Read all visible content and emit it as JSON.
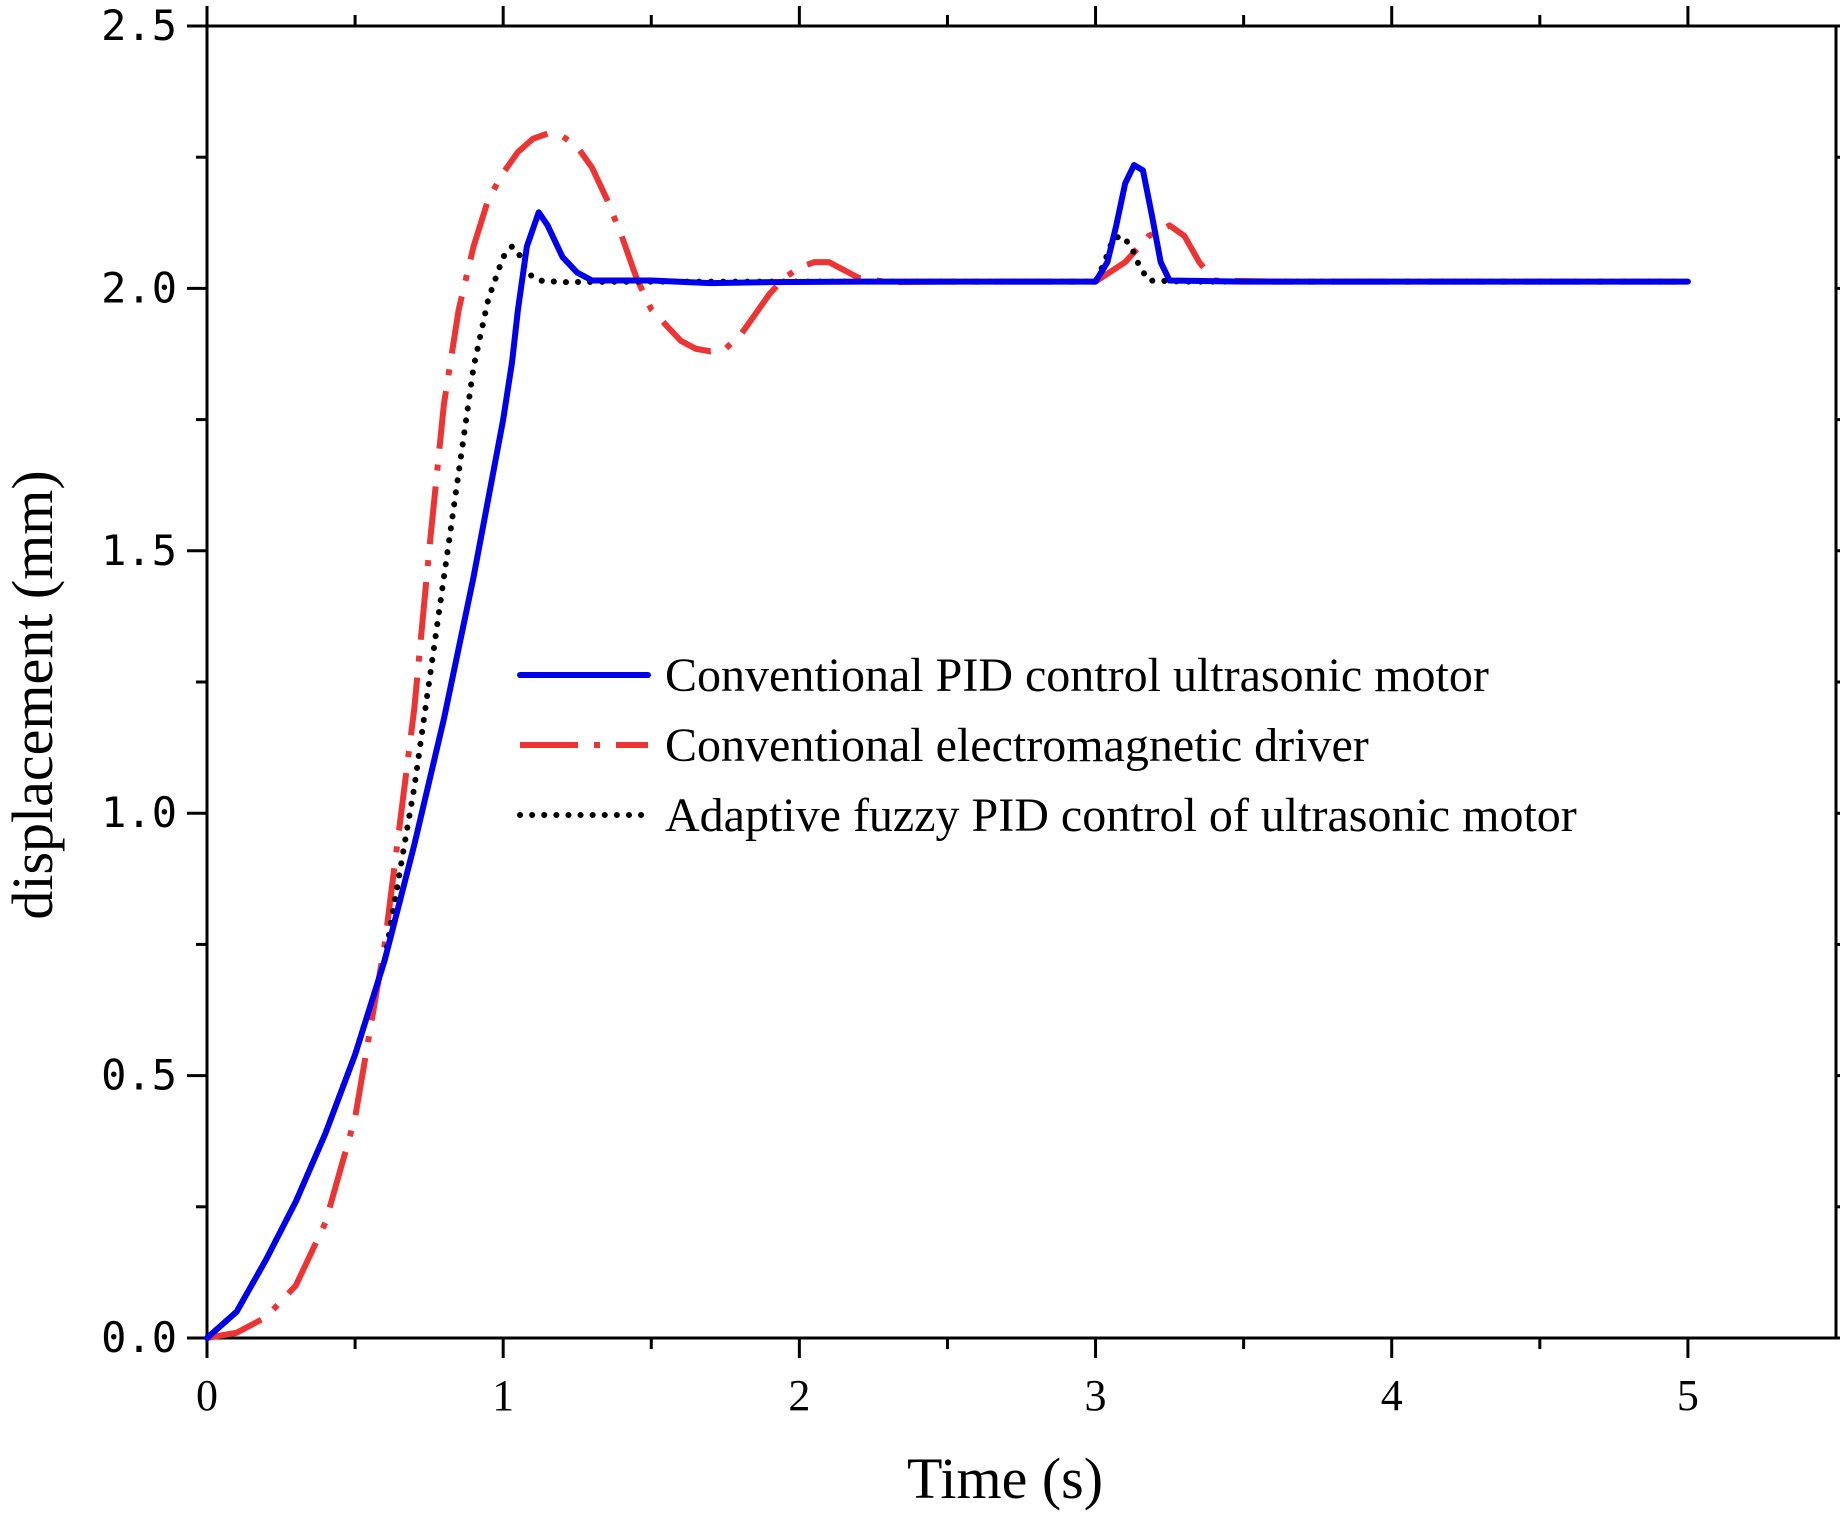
{
  "chart_data": {
    "type": "line",
    "xlabel": "Time (s)",
    "ylabel": "displacement (mm)",
    "xlim": [
      0,
      5.5
    ],
    "ylim": [
      0,
      2.5
    ],
    "x_ticks": [
      0,
      1,
      2,
      3,
      4,
      5
    ],
    "x_tick_labels": [
      "0",
      "1",
      "2",
      "3",
      "4",
      "5"
    ],
    "y_ticks": [
      0,
      0.5,
      1.0,
      1.5,
      2.0,
      2.5
    ],
    "y_tick_labels": [
      "0.0",
      "0.5",
      "1.0",
      "1.5",
      "2.0",
      "2.5"
    ],
    "grid": false,
    "legend_position": "center-right",
    "series": [
      {
        "name": "Conventional PID control ultrasonic motor",
        "color": "#0000ee",
        "style": "solid",
        "points": [
          [
            0,
            0
          ],
          [
            0.1,
            0.05
          ],
          [
            0.2,
            0.15
          ],
          [
            0.3,
            0.26
          ],
          [
            0.4,
            0.39
          ],
          [
            0.5,
            0.54
          ],
          [
            0.6,
            0.72
          ],
          [
            0.7,
            0.94
          ],
          [
            0.8,
            1.18
          ],
          [
            0.9,
            1.45
          ],
          [
            1.0,
            1.75
          ],
          [
            1.03,
            1.86
          ],
          [
            1.05,
            1.96
          ],
          [
            1.08,
            2.08
          ],
          [
            1.12,
            2.145
          ],
          [
            1.15,
            2.12
          ],
          [
            1.2,
            2.06
          ],
          [
            1.25,
            2.03
          ],
          [
            1.3,
            2.015
          ],
          [
            1.5,
            2.015
          ],
          [
            1.7,
            2.01
          ],
          [
            1.9,
            2.012
          ],
          [
            2.2,
            2.013
          ],
          [
            2.5,
            2.013
          ],
          [
            3.0,
            2.013
          ],
          [
            3.04,
            2.05
          ],
          [
            3.07,
            2.12
          ],
          [
            3.1,
            2.2
          ],
          [
            3.13,
            2.235
          ],
          [
            3.16,
            2.225
          ],
          [
            3.19,
            2.14
          ],
          [
            3.22,
            2.05
          ],
          [
            3.25,
            2.015
          ],
          [
            3.5,
            2.013
          ],
          [
            4.0,
            2.013
          ],
          [
            5.0,
            2.013
          ]
        ]
      },
      {
        "name": "Conventional electromagnetic driver",
        "color": "#ee3333",
        "style": "dashdot",
        "points": [
          [
            0,
            0
          ],
          [
            0.1,
            0.01
          ],
          [
            0.2,
            0.04
          ],
          [
            0.3,
            0.1
          ],
          [
            0.4,
            0.22
          ],
          [
            0.5,
            0.42
          ],
          [
            0.6,
            0.75
          ],
          [
            0.7,
            1.2
          ],
          [
            0.75,
            1.5
          ],
          [
            0.8,
            1.78
          ],
          [
            0.85,
            1.96
          ],
          [
            0.9,
            2.08
          ],
          [
            0.95,
            2.17
          ],
          [
            1.0,
            2.22
          ],
          [
            1.05,
            2.26
          ],
          [
            1.1,
            2.285
          ],
          [
            1.15,
            2.295
          ],
          [
            1.2,
            2.29
          ],
          [
            1.25,
            2.27
          ],
          [
            1.3,
            2.23
          ],
          [
            1.35,
            2.17
          ],
          [
            1.4,
            2.1
          ],
          [
            1.45,
            2.02
          ],
          [
            1.5,
            1.96
          ],
          [
            1.55,
            1.93
          ],
          [
            1.6,
            1.9
          ],
          [
            1.65,
            1.885
          ],
          [
            1.7,
            1.88
          ],
          [
            1.75,
            1.885
          ],
          [
            1.8,
            1.91
          ],
          [
            1.85,
            1.95
          ],
          [
            1.9,
            1.99
          ],
          [
            1.95,
            2.02
          ],
          [
            2.0,
            2.04
          ],
          [
            2.05,
            2.05
          ],
          [
            2.1,
            2.05
          ],
          [
            2.15,
            2.035
          ],
          [
            2.2,
            2.02
          ],
          [
            2.3,
            2.012
          ],
          [
            2.5,
            2.013
          ],
          [
            3.0,
            2.013
          ],
          [
            3.1,
            2.05
          ],
          [
            3.18,
            2.1
          ],
          [
            3.25,
            2.12
          ],
          [
            3.3,
            2.1
          ],
          [
            3.35,
            2.05
          ],
          [
            3.4,
            2.015
          ],
          [
            3.6,
            2.013
          ],
          [
            4.0,
            2.013
          ],
          [
            5.0,
            2.013
          ]
        ]
      },
      {
        "name": "Adaptive fuzzy PID control of ultrasonic motor",
        "color": "#000000",
        "style": "dotted",
        "points": [
          [
            0,
            0
          ],
          [
            0.1,
            0.05
          ],
          [
            0.2,
            0.15
          ],
          [
            0.3,
            0.26
          ],
          [
            0.4,
            0.39
          ],
          [
            0.5,
            0.54
          ],
          [
            0.6,
            0.72
          ],
          [
            0.7,
            1.05
          ],
          [
            0.75,
            1.25
          ],
          [
            0.8,
            1.45
          ],
          [
            0.85,
            1.65
          ],
          [
            0.9,
            1.85
          ],
          [
            0.95,
            1.98
          ],
          [
            1.0,
            2.06
          ],
          [
            1.03,
            2.08
          ],
          [
            1.05,
            2.07
          ],
          [
            1.08,
            2.03
          ],
          [
            1.12,
            2.015
          ],
          [
            1.2,
            2.012
          ],
          [
            1.5,
            2.013
          ],
          [
            2.0,
            2.013
          ],
          [
            2.5,
            2.013
          ],
          [
            3.0,
            2.013
          ],
          [
            3.03,
            2.05
          ],
          [
            3.06,
            2.095
          ],
          [
            3.09,
            2.1
          ],
          [
            3.12,
            2.08
          ],
          [
            3.15,
            2.04
          ],
          [
            3.18,
            2.015
          ],
          [
            3.3,
            2.013
          ],
          [
            4.0,
            2.013
          ],
          [
            5.0,
            2.013
          ]
        ]
      }
    ]
  }
}
